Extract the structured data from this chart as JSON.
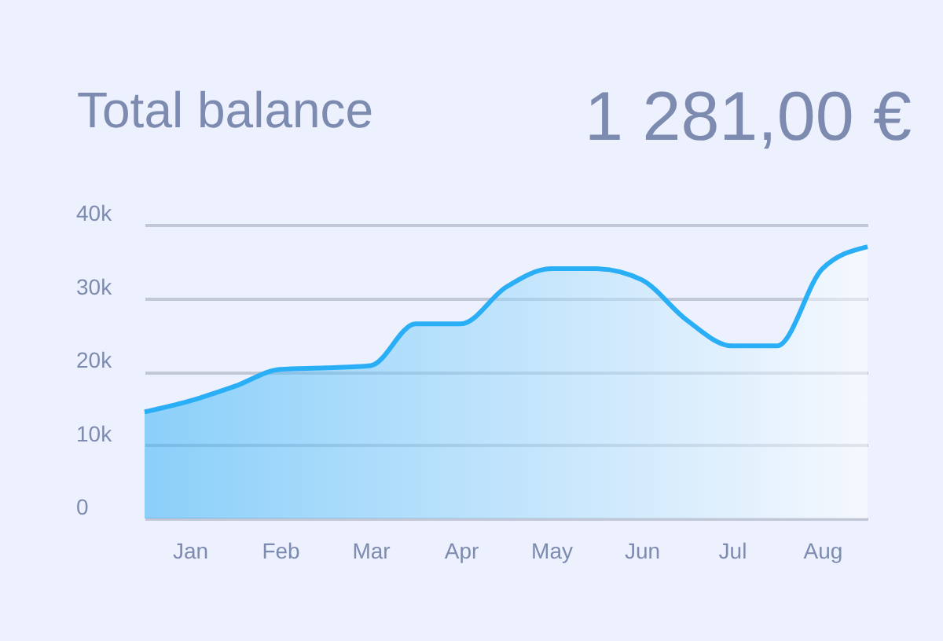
{
  "chart_data": {
    "type": "area",
    "title": "Total balance",
    "annotations": [
      "1 281,00 €"
    ],
    "categories": [
      null,
      "Jan",
      null,
      "Feb",
      null,
      "Mar",
      null,
      "Apr",
      null,
      "May",
      null,
      "Jun",
      null,
      "Jul",
      null,
      "Aug",
      null
    ],
    "series": [
      {
        "color": "#2aaef6",
        "values": [
          14500,
          16000,
          18000,
          20300,
          20500,
          20800,
          26500,
          26500,
          31500,
          34000,
          34000,
          32500,
          27000,
          23500,
          23500,
          34000,
          37000
        ]
      }
    ],
    "ylim": [
      0,
      40000
    ],
    "yticks": [
      {
        "value": 0,
        "label": "0"
      },
      {
        "value": 10000,
        "label": "10k"
      },
      {
        "value": 20000,
        "label": "20k"
      },
      {
        "value": 30000,
        "label": "30k"
      },
      {
        "value": 40000,
        "label": "40k"
      }
    ],
    "grid": "y",
    "marker": "none",
    "line_style": "solid"
  }
}
